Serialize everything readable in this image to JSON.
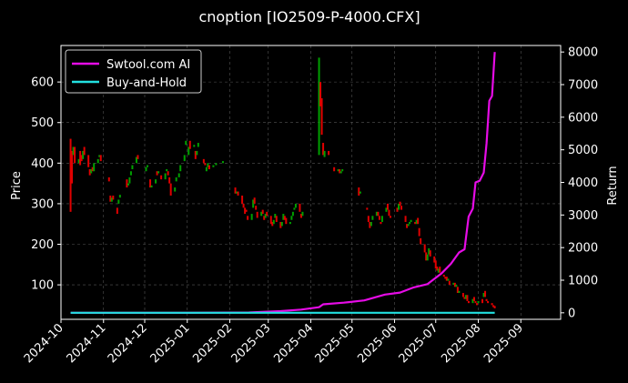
{
  "chart_data": {
    "type": "candlestick+line",
    "title": "cnoption [IO2509-P-4000.CFX]",
    "ylabel_left": "Price",
    "ylabel_right": "Return",
    "xlim": [
      "2024-10-01",
      "2025-09-30"
    ],
    "ylim_left": [
      15,
      690
    ],
    "ylim_right": [
      -200,
      8200
    ],
    "x_ticks": [
      "2024-10",
      "2024-11",
      "2024-12",
      "2025-01",
      "2025-02",
      "2025-03",
      "2025-04",
      "2025-05",
      "2025-06",
      "2025-07",
      "2025-08",
      "2025-09"
    ],
    "y_ticks_left": [
      "100",
      "200",
      "300",
      "400",
      "500",
      "600"
    ],
    "y_ticks_right": [
      "0",
      "1000",
      "2000",
      "3000",
      "4000",
      "5000",
      "6000",
      "7000",
      "8000"
    ],
    "grid": true,
    "legend_position": "top-left",
    "colors": {
      "up": "#00a000",
      "down": "#e00000",
      "ai_line": "#e60ce6",
      "bh_line": "#22e0e0"
    },
    "series": [
      {
        "name": "Swtool.com AI",
        "kind": "line",
        "axis": "right",
        "points": [
          [
            "2024-10-08",
            0
          ],
          [
            "2025-01-01",
            0
          ],
          [
            "2025-02-15",
            10
          ],
          [
            "2025-03-10",
            50
          ],
          [
            "2025-03-25",
            100
          ],
          [
            "2025-04-07",
            170
          ],
          [
            "2025-04-10",
            260
          ],
          [
            "2025-04-25",
            310
          ],
          [
            "2025-05-10",
            380
          ],
          [
            "2025-05-25",
            560
          ],
          [
            "2025-06-05",
            620
          ],
          [
            "2025-06-15",
            780
          ],
          [
            "2025-06-25",
            880
          ],
          [
            "2025-07-05",
            1200
          ],
          [
            "2025-07-12",
            1500
          ],
          [
            "2025-07-18",
            1850
          ],
          [
            "2025-07-22",
            1950
          ],
          [
            "2025-07-25",
            2950
          ],
          [
            "2025-07-28",
            3200
          ],
          [
            "2025-07-30",
            4000
          ],
          [
            "2025-08-02",
            4050
          ],
          [
            "2025-08-05",
            4300
          ],
          [
            "2025-08-07",
            5200
          ],
          [
            "2025-08-09",
            6500
          ],
          [
            "2025-08-11",
            6650
          ],
          [
            "2025-08-13",
            8000
          ]
        ]
      },
      {
        "name": "Buy-and-Hold",
        "kind": "line",
        "axis": "right",
        "points": [
          [
            "2024-10-08",
            0
          ],
          [
            "2025-08-13",
            0
          ]
        ]
      }
    ],
    "candles": [
      [
        "2024-10-08",
        460,
        280
      ],
      [
        "2024-10-09",
        430,
        350
      ],
      [
        "2024-10-10",
        420,
        440
      ],
      [
        "2024-10-11",
        440,
        400
      ],
      [
        "2024-10-14",
        400,
        410
      ],
      [
        "2024-10-15",
        430,
        395
      ],
      [
        "2024-10-16",
        420,
        405
      ],
      [
        "2024-10-17",
        410,
        430
      ],
      [
        "2024-10-18",
        440,
        420
      ],
      [
        "2024-10-21",
        420,
        390
      ],
      [
        "2024-10-22",
        385,
        370
      ],
      [
        "2024-10-23",
        375,
        385
      ],
      [
        "2024-10-24",
        390,
        380
      ],
      [
        "2024-10-25",
        380,
        400
      ],
      [
        "2024-10-28",
        400,
        410
      ],
      [
        "2024-10-29",
        415,
        420
      ],
      [
        "2024-10-30",
        420,
        405
      ],
      [
        "2024-11-05",
        365,
        355
      ],
      [
        "2024-11-06",
        320,
        305
      ],
      [
        "2024-11-07",
        305,
        315
      ],
      [
        "2024-11-08",
        320,
        310
      ],
      [
        "2024-11-11",
        290,
        275
      ],
      [
        "2024-11-12",
        300,
        310
      ],
      [
        "2024-11-13",
        315,
        322
      ],
      [
        "2024-11-18",
        360,
        340
      ],
      [
        "2024-11-19",
        345,
        350
      ],
      [
        "2024-11-20",
        350,
        365
      ],
      [
        "2024-11-21",
        370,
        380
      ],
      [
        "2024-11-22",
        385,
        395
      ],
      [
        "2024-11-25",
        400,
        415
      ],
      [
        "2024-11-26",
        420,
        410
      ],
      [
        "2024-12-02",
        380,
        390
      ],
      [
        "2024-12-03",
        390,
        395
      ],
      [
        "2024-12-05",
        360,
        340
      ],
      [
        "2024-12-06",
        340,
        345
      ],
      [
        "2024-12-09",
        350,
        360
      ],
      [
        "2024-12-10",
        380,
        370
      ],
      [
        "2024-12-11",
        375,
        380
      ],
      [
        "2024-12-13",
        370,
        360
      ],
      [
        "2024-12-16",
        360,
        375
      ],
      [
        "2024-12-17",
        380,
        385
      ],
      [
        "2024-12-18",
        380,
        370
      ],
      [
        "2024-12-19",
        365,
        350
      ],
      [
        "2024-12-20",
        350,
        320
      ],
      [
        "2024-12-23",
        330,
        340
      ],
      [
        "2024-12-24",
        355,
        365
      ],
      [
        "2024-12-26",
        365,
        375
      ],
      [
        "2024-12-27",
        380,
        395
      ],
      [
        "2024-12-30",
        405,
        420
      ],
      [
        "2024-12-31",
        445,
        455
      ],
      [
        "2025-01-02",
        420,
        440
      ],
      [
        "2025-01-03",
        455,
        435
      ],
      [
        "2025-01-06",
        440,
        445
      ],
      [
        "2025-01-07",
        430,
        410
      ],
      [
        "2025-01-08",
        420,
        430
      ],
      [
        "2025-01-09",
        440,
        450
      ],
      [
        "2025-01-13",
        410,
        400
      ],
      [
        "2025-01-14",
        400,
        395
      ],
      [
        "2025-01-15",
        380,
        390
      ],
      [
        "2025-01-16",
        390,
        400
      ],
      [
        "2025-01-17",
        395,
        385
      ],
      [
        "2025-01-20",
        390,
        395
      ],
      [
        "2025-01-22",
        395,
        400
      ],
      [
        "2025-01-27",
        400,
        405
      ],
      [
        "2025-02-05",
        340,
        325
      ],
      [
        "2025-02-06",
        325,
        330
      ],
      [
        "2025-02-07",
        330,
        320
      ],
      [
        "2025-02-10",
        320,
        300
      ],
      [
        "2025-02-11",
        300,
        290
      ],
      [
        "2025-02-12",
        290,
        275
      ],
      [
        "2025-02-13",
        285,
        280
      ],
      [
        "2025-02-14",
        270,
        260
      ],
      [
        "2025-02-17",
        260,
        275
      ],
      [
        "2025-02-18",
        290,
        310
      ],
      [
        "2025-02-19",
        315,
        300
      ],
      [
        "2025-02-20",
        295,
        285
      ],
      [
        "2025-02-21",
        280,
        265
      ],
      [
        "2025-02-24",
        270,
        280
      ],
      [
        "2025-02-25",
        285,
        275
      ],
      [
        "2025-02-26",
        270,
        260
      ],
      [
        "2025-02-27",
        265,
        275
      ],
      [
        "2025-02-28",
        280,
        270
      ],
      [
        "2025-03-03",
        270,
        250
      ],
      [
        "2025-03-04",
        255,
        245
      ],
      [
        "2025-03-05",
        250,
        260
      ],
      [
        "2025-03-06",
        265,
        275
      ],
      [
        "2025-03-07",
        270,
        255
      ],
      [
        "2025-03-10",
        255,
        240
      ],
      [
        "2025-03-11",
        245,
        255
      ],
      [
        "2025-03-12",
        260,
        275
      ],
      [
        "2025-03-13",
        270,
        260
      ],
      [
        "2025-03-14",
        265,
        250
      ],
      [
        "2025-03-17",
        250,
        255
      ],
      [
        "2025-03-18",
        260,
        270
      ],
      [
        "2025-03-19",
        270,
        280
      ],
      [
        "2025-03-20",
        285,
        290
      ],
      [
        "2025-03-21",
        290,
        300
      ],
      [
        "2025-03-24",
        300,
        280
      ],
      [
        "2025-03-25",
        275,
        265
      ],
      [
        "2025-03-26",
        270,
        280
      ],
      [
        "2025-04-07",
        420,
        660
      ],
      [
        "2025-04-08",
        600,
        540
      ],
      [
        "2025-04-09",
        560,
        470
      ],
      [
        "2025-04-10",
        450,
        420
      ],
      [
        "2025-04-11",
        415,
        430
      ],
      [
        "2025-04-14",
        430,
        420
      ],
      [
        "2025-04-18",
        390,
        380
      ],
      [
        "2025-04-21",
        380,
        385
      ],
      [
        "2025-04-22",
        385,
        375
      ],
      [
        "2025-04-23",
        375,
        380
      ],
      [
        "2025-04-24",
        380,
        385
      ],
      [
        "2025-05-06",
        340,
        320
      ],
      [
        "2025-05-07",
        325,
        330
      ],
      [
        "2025-05-12",
        290,
        285
      ],
      [
        "2025-05-13",
        270,
        255
      ],
      [
        "2025-05-14",
        255,
        240
      ],
      [
        "2025-05-15",
        245,
        255
      ],
      [
        "2025-05-16",
        260,
        270
      ],
      [
        "2025-05-19",
        270,
        280
      ],
      [
        "2025-05-20",
        280,
        270
      ],
      [
        "2025-05-21",
        270,
        260
      ],
      [
        "2025-05-22",
        255,
        250
      ],
      [
        "2025-05-23",
        255,
        270
      ],
      [
        "2025-05-26",
        280,
        290
      ],
      [
        "2025-05-27",
        300,
        285
      ],
      [
        "2025-05-28",
        285,
        270
      ],
      [
        "2025-05-29",
        270,
        265
      ],
      [
        "2025-06-03",
        290,
        280
      ],
      [
        "2025-06-04",
        285,
        300
      ],
      [
        "2025-06-05",
        305,
        295
      ],
      [
        "2025-06-06",
        295,
        285
      ],
      [
        "2025-06-09",
        270,
        255
      ],
      [
        "2025-06-10",
        250,
        240
      ],
      [
        "2025-06-11",
        245,
        250
      ],
      [
        "2025-06-12",
        250,
        255
      ],
      [
        "2025-06-13",
        255,
        260
      ],
      [
        "2025-06-16",
        255,
        250
      ],
      [
        "2025-06-17",
        250,
        260
      ],
      [
        "2025-06-18",
        265,
        250
      ],
      [
        "2025-06-19",
        240,
        220
      ],
      [
        "2025-06-20",
        215,
        200
      ],
      [
        "2025-06-23",
        200,
        180
      ],
      [
        "2025-06-24",
        180,
        160
      ],
      [
        "2025-06-25",
        160,
        175
      ],
      [
        "2025-06-26",
        175,
        190
      ],
      [
        "2025-06-27",
        185,
        170
      ],
      [
        "2025-06-30",
        170,
        155
      ],
      [
        "2025-07-01",
        160,
        140
      ],
      [
        "2025-07-02",
        145,
        135
      ],
      [
        "2025-07-03",
        130,
        140
      ],
      [
        "2025-07-04",
        145,
        130
      ],
      [
        "2025-07-07",
        125,
        120
      ],
      [
        "2025-07-08",
        120,
        115
      ],
      [
        "2025-07-09",
        120,
        110
      ],
      [
        "2025-07-10",
        110,
        115
      ],
      [
        "2025-07-11",
        110,
        100
      ],
      [
        "2025-07-14",
        100,
        105
      ],
      [
        "2025-07-15",
        105,
        95
      ],
      [
        "2025-07-16",
        95,
        100
      ],
      [
        "2025-07-17",
        95,
        80
      ],
      [
        "2025-07-18",
        80,
        85
      ],
      [
        "2025-07-21",
        80,
        70
      ],
      [
        "2025-07-22",
        70,
        65
      ],
      [
        "2025-07-23",
        65,
        75
      ],
      [
        "2025-07-24",
        75,
        60
      ],
      [
        "2025-07-25",
        60,
        55
      ],
      [
        "2025-07-28",
        55,
        65
      ],
      [
        "2025-07-29",
        70,
        60
      ],
      [
        "2025-07-30",
        60,
        55
      ],
      [
        "2025-07-31",
        55,
        50
      ],
      [
        "2025-08-01",
        55,
        60
      ],
      [
        "2025-08-04",
        65,
        55
      ],
      [
        "2025-08-05",
        70,
        80
      ],
      [
        "2025-08-06",
        85,
        70
      ],
      [
        "2025-08-07",
        65,
        60
      ],
      [
        "2025-08-08",
        60,
        55
      ],
      [
        "2025-08-11",
        55,
        50
      ],
      [
        "2025-08-12",
        50,
        45
      ],
      [
        "2025-08-13",
        48,
        42
      ]
    ]
  }
}
